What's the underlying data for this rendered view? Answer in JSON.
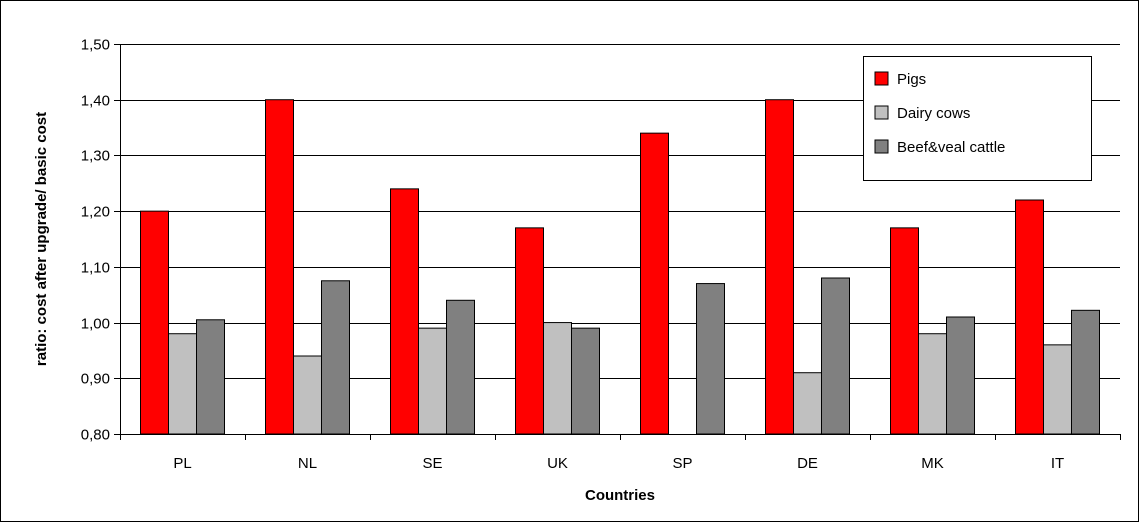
{
  "chart_data": {
    "type": "bar",
    "title": "",
    "xlabel": "Countries",
    "ylabel": "ratio: cost after upgrade/ basic cost",
    "categories": [
      "PL",
      "NL",
      "SE",
      "UK",
      "SP",
      "DE",
      "MK",
      "IT"
    ],
    "ylim": [
      0.8,
      1.5
    ],
    "ytick_step": 0.1,
    "ytick_labels": [
      "0,80",
      "0,90",
      "1,00",
      "1,10",
      "1,20",
      "1,30",
      "1,40",
      "1,50"
    ],
    "grid": true,
    "legend_position": "top-right",
    "series": [
      {
        "name": "Pigs",
        "color": "#ff0000",
        "values": [
          1.2,
          1.4,
          1.24,
          1.17,
          1.34,
          1.4,
          1.17,
          1.22
        ]
      },
      {
        "name": "Dairy cows",
        "color": "#c0c0c0",
        "values": [
          0.98,
          0.94,
          0.99,
          1.0,
          null,
          0.91,
          0.98,
          0.96
        ]
      },
      {
        "name": "Beef&veal cattle",
        "color": "#808080",
        "values": [
          1.005,
          1.075,
          1.04,
          0.99,
          1.07,
          1.08,
          1.01,
          1.022
        ]
      }
    ]
  }
}
